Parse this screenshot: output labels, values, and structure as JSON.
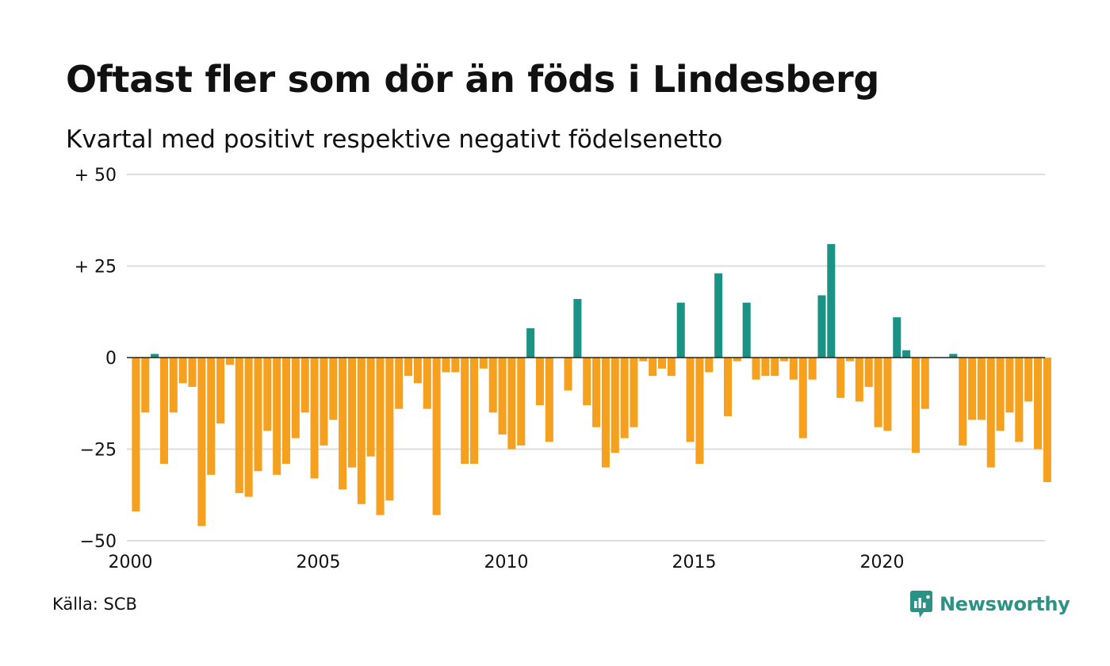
{
  "title": "Oftast fler som dör än föds i Lindesberg",
  "subtitle": "Kvartal med positivt respektive negativt födelsenetto",
  "source": "Källa: SCB",
  "brand": {
    "name": "Newsworthy",
    "icon": "newsworthy-chart-bubble-icon",
    "color": "#2a9386"
  },
  "colors": {
    "positive": "#1a9384",
    "negative": "#f5a11f",
    "grid": "#dddddd",
    "zero_line": "#222222"
  },
  "chart_data": {
    "type": "bar",
    "title": "Oftast fler som dör än föds i Lindesberg",
    "subtitle": "Kvartal med positivt respektive negativt födelsenetto",
    "xlabel": "",
    "ylabel": "",
    "ylim": [
      -50,
      50
    ],
    "yticks": [
      50,
      25,
      0,
      -25,
      -50
    ],
    "ytick_labels": [
      "+ 50",
      "+ 25",
      "0",
      "−25",
      "−50"
    ],
    "xticks": [
      2000,
      2005,
      2010,
      2015,
      2020
    ],
    "xtick_labels": [
      "2000",
      "2005",
      "2010",
      "2015",
      "2020"
    ],
    "grid": true,
    "legend": "none",
    "x_start": "2000 Q1",
    "frequency": "quarterly",
    "values": [
      -42,
      -15,
      1,
      -29,
      -15,
      -7,
      -8,
      -46,
      -32,
      -18,
      -2,
      -37,
      -38,
      -31,
      -20,
      -32,
      -29,
      -22,
      -15,
      -33,
      -24,
      -17,
      -36,
      -30,
      -40,
      -27,
      -43,
      -39,
      -14,
      -5,
      -7,
      -14,
      -43,
      -4,
      -4,
      -29,
      -29,
      -3,
      -15,
      -21,
      -25,
      -24,
      8,
      -13,
      -23,
      0,
      -9,
      16,
      -13,
      -19,
      -30,
      -26,
      -22,
      -19,
      -1,
      -5,
      -3,
      -5,
      15,
      -23,
      -29,
      -4,
      23,
      -16,
      -1,
      15,
      -6,
      -5,
      -5,
      -1,
      -6,
      -22,
      -6,
      17,
      31,
      -11,
      -1,
      -12,
      -8,
      -19,
      -20,
      11,
      2,
      -26,
      -14,
      0,
      0,
      1,
      -24,
      -17,
      -17,
      -30,
      -20,
      -15,
      -23,
      -12,
      -25,
      -34
    ]
  }
}
